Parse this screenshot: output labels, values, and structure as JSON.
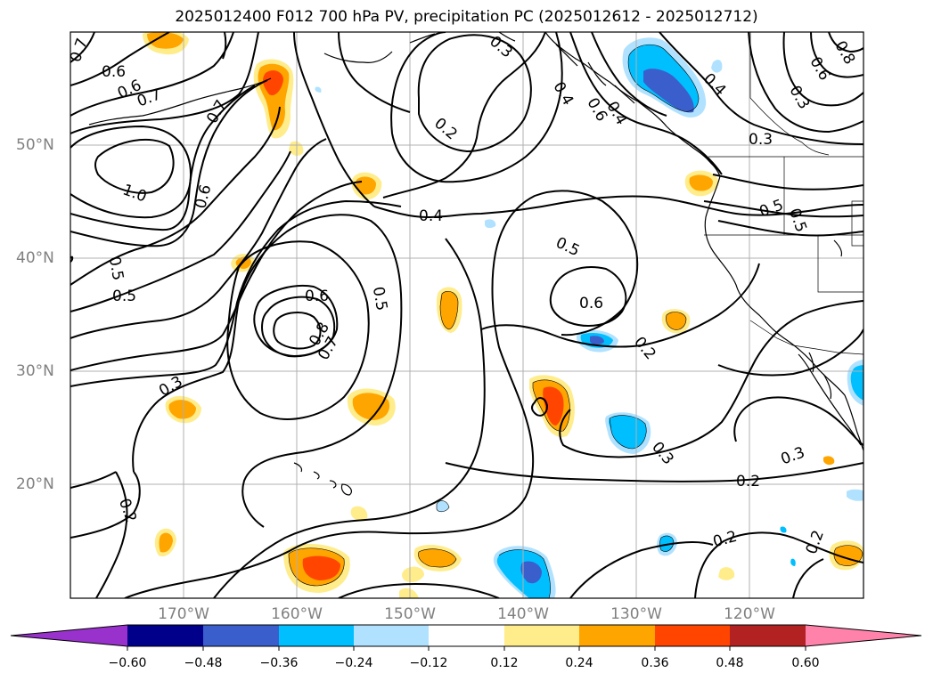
{
  "title": "2025012400 F012 700 hPa PV, precipitation PC (2025012612 - 2025012712)",
  "map": {
    "projection": "cylindrical",
    "lon_labels": [
      "170°W",
      "160°W",
      "150°W",
      "140°W",
      "130°W",
      "120°W"
    ],
    "lat_labels": [
      "50°N",
      "40°N",
      "30°N",
      "20°N"
    ],
    "contour_labels": [
      "0.7",
      "0.6",
      "0.6",
      "0.7",
      "0.7",
      "1.0",
      "0.6",
      "0.5",
      "0.5",
      "0.3",
      "0.2",
      "0.6",
      "0.8",
      "0.7",
      "0.5",
      "0.4",
      "0.2",
      "0.3",
      "0.4",
      "0.6",
      "0.4",
      "0.5",
      "0.6",
      "0.2",
      "0.3",
      "0.2",
      "0.2",
      "0.3",
      "0.5",
      "0.5",
      "0.3",
      "0.2",
      "0.4",
      "0.3",
      "0.8",
      "0.6"
    ]
  },
  "colorbar": {
    "ticks": [
      "−0.60",
      "−0.48",
      "−0.36",
      "−0.24",
      "−0.12",
      "0.12",
      "0.24",
      "0.36",
      "0.48",
      "0.60"
    ],
    "colors": [
      "#9932cc",
      "#00008b",
      "#3a5fcd",
      "#00bfff",
      "#b0e2ff",
      "#ffffff",
      "#ffec8b",
      "#ffa500",
      "#ff4500",
      "#b22222",
      "#ff82ab"
    ]
  },
  "legend": {
    "pv_contours": "black lines",
    "precip_pc": "filled shading"
  }
}
